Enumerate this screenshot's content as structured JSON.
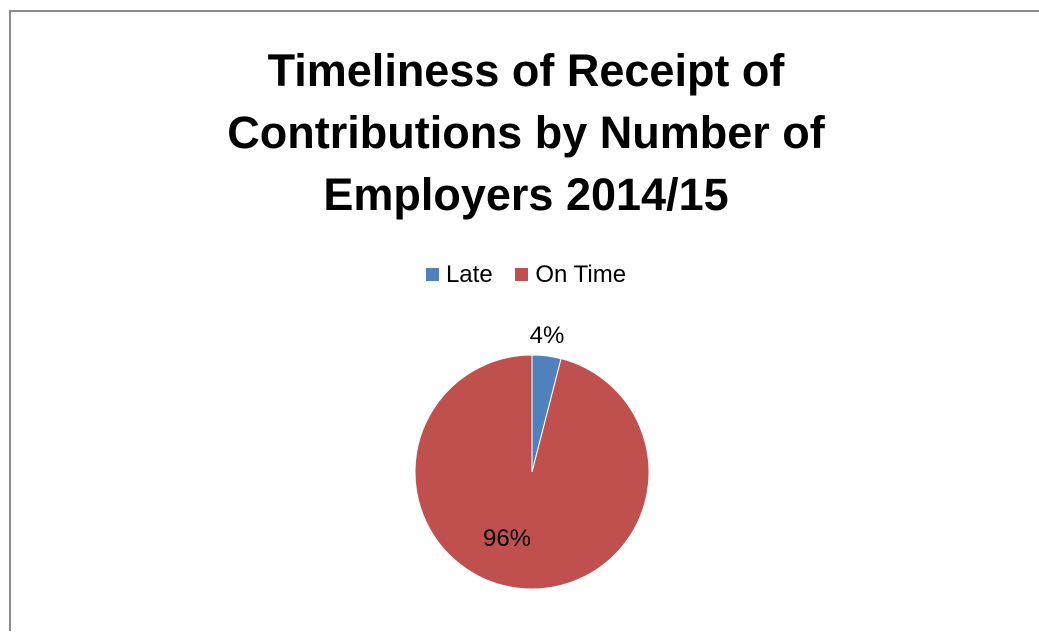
{
  "chart_data": {
    "type": "pie",
    "title": [
      "Timeliness of Receipt of",
      "Contributions by Number of",
      "Employers 2014/15"
    ],
    "legend_position": "top",
    "categories": [
      "Late",
      "On Time"
    ],
    "values": [
      4,
      96
    ],
    "data_labels": [
      "4%",
      "96%"
    ],
    "colors": [
      "#4f81bd",
      "#c0504d"
    ]
  }
}
